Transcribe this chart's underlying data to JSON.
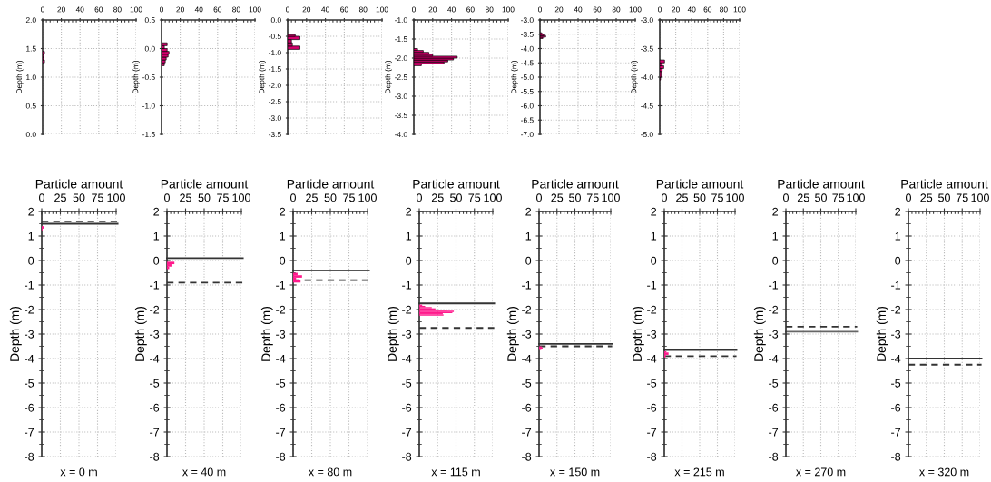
{
  "chart_data": [
    {
      "type": "histogram",
      "orientation": "horizontal",
      "ylabel": "Depth (m)",
      "color": "#d4006e",
      "bins": [
        1.25,
        1.3,
        1.35,
        1.4,
        1.45
      ],
      "values": [
        2,
        1,
        1,
        2
      ],
      "xlim": [
        0,
        100
      ],
      "xticks": [
        0,
        20,
        40,
        60,
        80,
        100
      ],
      "ylim": [
        0,
        2
      ],
      "yticks": [
        {
          "value": 0,
          "label": "0.0"
        },
        {
          "value": 0.5,
          "label": "0.5"
        },
        {
          "value": 1,
          "label": "1.0"
        },
        {
          "value": 1.5,
          "label": "1.5"
        },
        {
          "value": 2,
          "label": "2.0"
        }
      ],
      "grid": true
    },
    {
      "type": "histogram",
      "orientation": "horizontal",
      "ylabel": "Depth (m)",
      "color": "#d4006e",
      "bins": [
        -0.3,
        -0.25,
        -0.2,
        -0.15,
        -0.1,
        -0.05,
        0,
        0.05,
        0.1
      ],
      "values": [
        3,
        4,
        5,
        7,
        8,
        6,
        3,
        6
      ],
      "xlim": [
        0,
        100
      ],
      "xticks": [
        0,
        20,
        40,
        60,
        80,
        100
      ],
      "ylim": [
        -1.5,
        0.5
      ],
      "yticks": [
        {
          "value": -1.5,
          "label": "-1.5"
        },
        {
          "value": -1,
          "label": "-1.0"
        },
        {
          "value": -0.5,
          "label": "-0.5"
        },
        {
          "value": 0,
          "label": "0.0"
        },
        {
          "value": 0.5,
          "label": "0.5"
        }
      ],
      "grid": true
    },
    {
      "type": "histogram",
      "orientation": "horizontal",
      "ylabel": "Depth (m)",
      "color": "#d4006e",
      "bins": [
        -0.9,
        -0.8,
        -0.7,
        -0.6,
        -0.5,
        -0.45
      ],
      "values": [
        13,
        5,
        4,
        13,
        8
      ],
      "xlim": [
        0,
        100
      ],
      "xticks": [
        0,
        20,
        40,
        60,
        80,
        100
      ],
      "ylim": [
        -3.5,
        0
      ],
      "yticks": [
        {
          "value": -3.5,
          "label": "-3.5"
        },
        {
          "value": -3,
          "label": "-3.0"
        },
        {
          "value": -2.5,
          "label": "-2.5"
        },
        {
          "value": -2,
          "label": "-2.0"
        },
        {
          "value": -1.5,
          "label": "-1.5"
        },
        {
          "value": -1,
          "label": "-1.0"
        },
        {
          "value": -0.5,
          "label": "-0.5"
        },
        {
          "value": 0,
          "label": "0.0"
        }
      ],
      "grid": true
    },
    {
      "type": "histogram",
      "orientation": "horizontal",
      "ylabel": "Depth (m)",
      "color": "#d4006e",
      "bins": [
        -2.2,
        -2.15,
        -2.1,
        -2.05,
        -2.0,
        -1.95,
        -1.9,
        -1.85,
        -1.8,
        -1.75
      ],
      "values": [
        8,
        32,
        36,
        42,
        46,
        20,
        16,
        10,
        4
      ],
      "xlim": [
        0,
        100
      ],
      "xticks": [
        0,
        20,
        40,
        60,
        80,
        100
      ],
      "ylim": [
        -4,
        -1
      ],
      "yticks": [
        {
          "value": -4,
          "label": "-4.0"
        },
        {
          "value": -3.5,
          "label": "-3.5"
        },
        {
          "value": -3,
          "label": "-3.0"
        },
        {
          "value": -2.5,
          "label": "-2.5"
        },
        {
          "value": -2,
          "label": "-2.0"
        },
        {
          "value": -1.5,
          "label": "-1.5"
        },
        {
          "value": -1,
          "label": "-1.0"
        }
      ],
      "grid": true
    },
    {
      "type": "histogram",
      "orientation": "horizontal",
      "ylabel": "Depth (m)",
      "color": "#d4006e",
      "bins": [
        -3.65,
        -3.6,
        -3.55,
        -3.5,
        -3.45
      ],
      "values": [
        3,
        6,
        4,
        2
      ],
      "xlim": [
        0,
        100
      ],
      "xticks": [
        0,
        20,
        40,
        60,
        80,
        100
      ],
      "ylim": [
        -7,
        -3
      ],
      "yticks": [
        {
          "value": -7,
          "label": "-7.0"
        },
        {
          "value": -6.5,
          "label": "-6.5"
        },
        {
          "value": -6,
          "label": "-6.0"
        },
        {
          "value": -5.5,
          "label": "-5.5"
        },
        {
          "value": -5,
          "label": "-5.0"
        },
        {
          "value": -4.5,
          "label": "-4.5"
        },
        {
          "value": -4,
          "label": "-4.0"
        },
        {
          "value": -3.5,
          "label": "-3.5"
        },
        {
          "value": -3,
          "label": "-3.0"
        }
      ],
      "grid": true
    },
    {
      "type": "histogram",
      "orientation": "horizontal",
      "ylabel": "Depth (m)",
      "color": "#d4006e",
      "bins": [
        -4.05,
        -4.0,
        -3.9,
        -3.85,
        -3.8,
        -3.75,
        -3.7
      ],
      "values": [
        1,
        2,
        3,
        5,
        3,
        6
      ],
      "xlim": [
        0,
        100
      ],
      "xticks": [
        0,
        20,
        40,
        60,
        80,
        100
      ],
      "ylim": [
        -5,
        -3
      ],
      "yticks": [
        {
          "value": -5,
          "label": "-5.0"
        },
        {
          "value": -4.5,
          "label": "-4.5"
        },
        {
          "value": -4,
          "label": "-4.0"
        },
        {
          "value": -3.5,
          "label": "-3.5"
        },
        {
          "value": -3,
          "label": "-3.0"
        }
      ],
      "grid": true
    },
    {
      "type": "histogram",
      "orientation": "horizontal",
      "xlabel": "Particle amount",
      "ylabel": "Depth (m)",
      "annotations": [
        "x = 0 m"
      ],
      "color": "#ff1a8c",
      "bins": [
        1.2,
        1.3,
        1.4
      ],
      "values": [
        1,
        3
      ],
      "xlim": [
        0,
        100
      ],
      "xticks": [
        0,
        25,
        50,
        75,
        100
      ],
      "ylim": [
        -8,
        2
      ],
      "yticks": [
        -8,
        -7,
        -6,
        -5,
        -4,
        -3,
        -2,
        -1,
        0,
        1,
        2
      ],
      "grid": true,
      "ref_lines": [
        {
          "axis": "y",
          "value": 1.5,
          "line_style": "solid",
          "color": "#333333"
        },
        {
          "axis": "y",
          "value": 1.6,
          "line_style": "dashed",
          "color": "#333333"
        }
      ]
    },
    {
      "type": "histogram",
      "orientation": "horizontal",
      "xlabel": "Particle amount",
      "ylabel": "Depth (m)",
      "annotations": [
        "x = 40 m"
      ],
      "color": "#ff1a8c",
      "bins": [
        -0.35,
        -0.25,
        -0.15,
        -0.05
      ],
      "values": [
        3,
        6,
        10
      ],
      "xlim": [
        0,
        100
      ],
      "xticks": [
        0,
        25,
        50,
        75,
        100
      ],
      "ylim": [
        -8,
        2
      ],
      "yticks": [
        -8,
        -7,
        -6,
        -5,
        -4,
        -3,
        -2,
        -1,
        0,
        1,
        2
      ],
      "grid": true,
      "ref_lines": [
        {
          "axis": "y",
          "value": 0.1,
          "line_style": "solid",
          "color": "#333333"
        },
        {
          "axis": "y",
          "value": -0.9,
          "line_style": "dashed",
          "color": "#333333"
        }
      ]
    },
    {
      "type": "histogram",
      "orientation": "horizontal",
      "xlabel": "Particle amount",
      "ylabel": "Depth (m)",
      "annotations": [
        "x = 80 m"
      ],
      "color": "#ff1a8c",
      "bins": [
        -0.9,
        -0.8,
        -0.7,
        -0.6,
        -0.5
      ],
      "values": [
        10,
        4,
        12,
        6
      ],
      "xlim": [
        0,
        100
      ],
      "xticks": [
        0,
        25,
        50,
        75,
        100
      ],
      "ylim": [
        -8,
        2
      ],
      "yticks": [
        -8,
        -7,
        -6,
        -5,
        -4,
        -3,
        -2,
        -1,
        0,
        1,
        2
      ],
      "grid": true,
      "ref_lines": [
        {
          "axis": "y",
          "value": -0.4,
          "line_style": "solid",
          "color": "#555555"
        },
        {
          "axis": "y",
          "value": -0.8,
          "line_style": "dashed",
          "color": "#333333"
        }
      ]
    },
    {
      "type": "histogram",
      "orientation": "horizontal",
      "xlabel": "Particle amount",
      "ylabel": "Depth (m)",
      "annotations": [
        "x = 115 m"
      ],
      "color": "#ff1a8c",
      "bins": [
        -2.25,
        -2.2,
        -2.15,
        -2.1,
        -2.05,
        -2.0,
        -1.95,
        -1.9,
        -1.85,
        -1.8
      ],
      "values": [
        33,
        32,
        45,
        47,
        38,
        22,
        17,
        8,
        4
      ],
      "xlim": [
        0,
        100
      ],
      "xticks": [
        0,
        25,
        50,
        75,
        100
      ],
      "ylim": [
        -8,
        2
      ],
      "yticks": [
        -8,
        -7,
        -6,
        -5,
        -4,
        -3,
        -2,
        -1,
        0,
        1,
        2
      ],
      "grid": true,
      "ref_lines": [
        {
          "axis": "y",
          "value": -1.75,
          "line_style": "solid",
          "color": "#333333"
        },
        {
          "axis": "y",
          "value": -2.75,
          "line_style": "dashed",
          "color": "#333333"
        }
      ]
    },
    {
      "type": "histogram",
      "orientation": "horizontal",
      "xlabel": "Particle amount",
      "ylabel": "Depth (m)",
      "annotations": [
        "x = 150 m"
      ],
      "color": "#ff1a8c",
      "bins": [
        -3.65,
        -3.6,
        -3.55,
        -3.5
      ],
      "values": [
        3,
        5,
        4
      ],
      "xlim": [
        0,
        100
      ],
      "xticks": [
        0,
        25,
        50,
        75,
        100
      ],
      "ylim": [
        -8,
        2
      ],
      "yticks": [
        -8,
        -7,
        -6,
        -5,
        -4,
        -3,
        -2,
        -1,
        0,
        1,
        2
      ],
      "grid": true,
      "ref_lines": [
        {
          "axis": "y",
          "value": -3.4,
          "line_style": "solid",
          "color": "#333333"
        },
        {
          "axis": "y",
          "value": -3.5,
          "line_style": "dashed",
          "color": "#333333"
        }
      ]
    },
    {
      "type": "histogram",
      "orientation": "horizontal",
      "xlabel": "Particle amount",
      "ylabel": "Depth (m)",
      "annotations": [
        "x = 215 m"
      ],
      "color": "#ff1a8c",
      "bins": [
        -3.95,
        -3.85,
        -3.75,
        -3.7
      ],
      "values": [
        2,
        6,
        3
      ],
      "xlim": [
        0,
        100
      ],
      "xticks": [
        0,
        25,
        50,
        75,
        100
      ],
      "ylim": [
        -8,
        2
      ],
      "yticks": [
        -8,
        -7,
        -6,
        -5,
        -4,
        -3,
        -2,
        -1,
        0,
        1,
        2
      ],
      "grid": true,
      "ref_lines": [
        {
          "axis": "y",
          "value": -3.65,
          "line_style": "solid",
          "color": "#333333"
        },
        {
          "axis": "y",
          "value": -3.9,
          "line_style": "dashed",
          "color": "#333333"
        }
      ]
    },
    {
      "type": "histogram",
      "orientation": "horizontal",
      "xlabel": "Particle amount",
      "ylabel": "Depth (m)",
      "annotations": [
        "x = 270 m"
      ],
      "xlim": [
        0,
        100
      ],
      "xticks": [
        0,
        25,
        50,
        75,
        100
      ],
      "ylim": [
        -8,
        2
      ],
      "yticks": [
        -8,
        -7,
        -6,
        -5,
        -4,
        -3,
        -2,
        -1,
        0,
        1,
        2
      ],
      "grid": true,
      "ref_lines": [
        {
          "axis": "y",
          "value": -2.9,
          "line_style": "solid",
          "color": "#666666"
        },
        {
          "axis": "y",
          "value": -2.7,
          "line_style": "dashed",
          "color": "#333333"
        }
      ]
    },
    {
      "type": "histogram",
      "orientation": "horizontal",
      "xlabel": "Particle amount",
      "ylabel": "Depth (m)",
      "annotations": [
        "x = 320 m"
      ],
      "xlim": [
        0,
        100
      ],
      "xticks": [
        0,
        25,
        50,
        75,
        100
      ],
      "ylim": [
        -8,
        2
      ],
      "yticks": [
        -8,
        -7,
        -6,
        -5,
        -4,
        -3,
        -2,
        -1,
        0,
        1,
        2
      ],
      "grid": true,
      "ref_lines": [
        {
          "axis": "y",
          "value": -4.0,
          "line_style": "solid",
          "color": "#333333"
        },
        {
          "axis": "y",
          "value": -4.25,
          "line_style": "dashed",
          "color": "#333333"
        }
      ]
    }
  ]
}
